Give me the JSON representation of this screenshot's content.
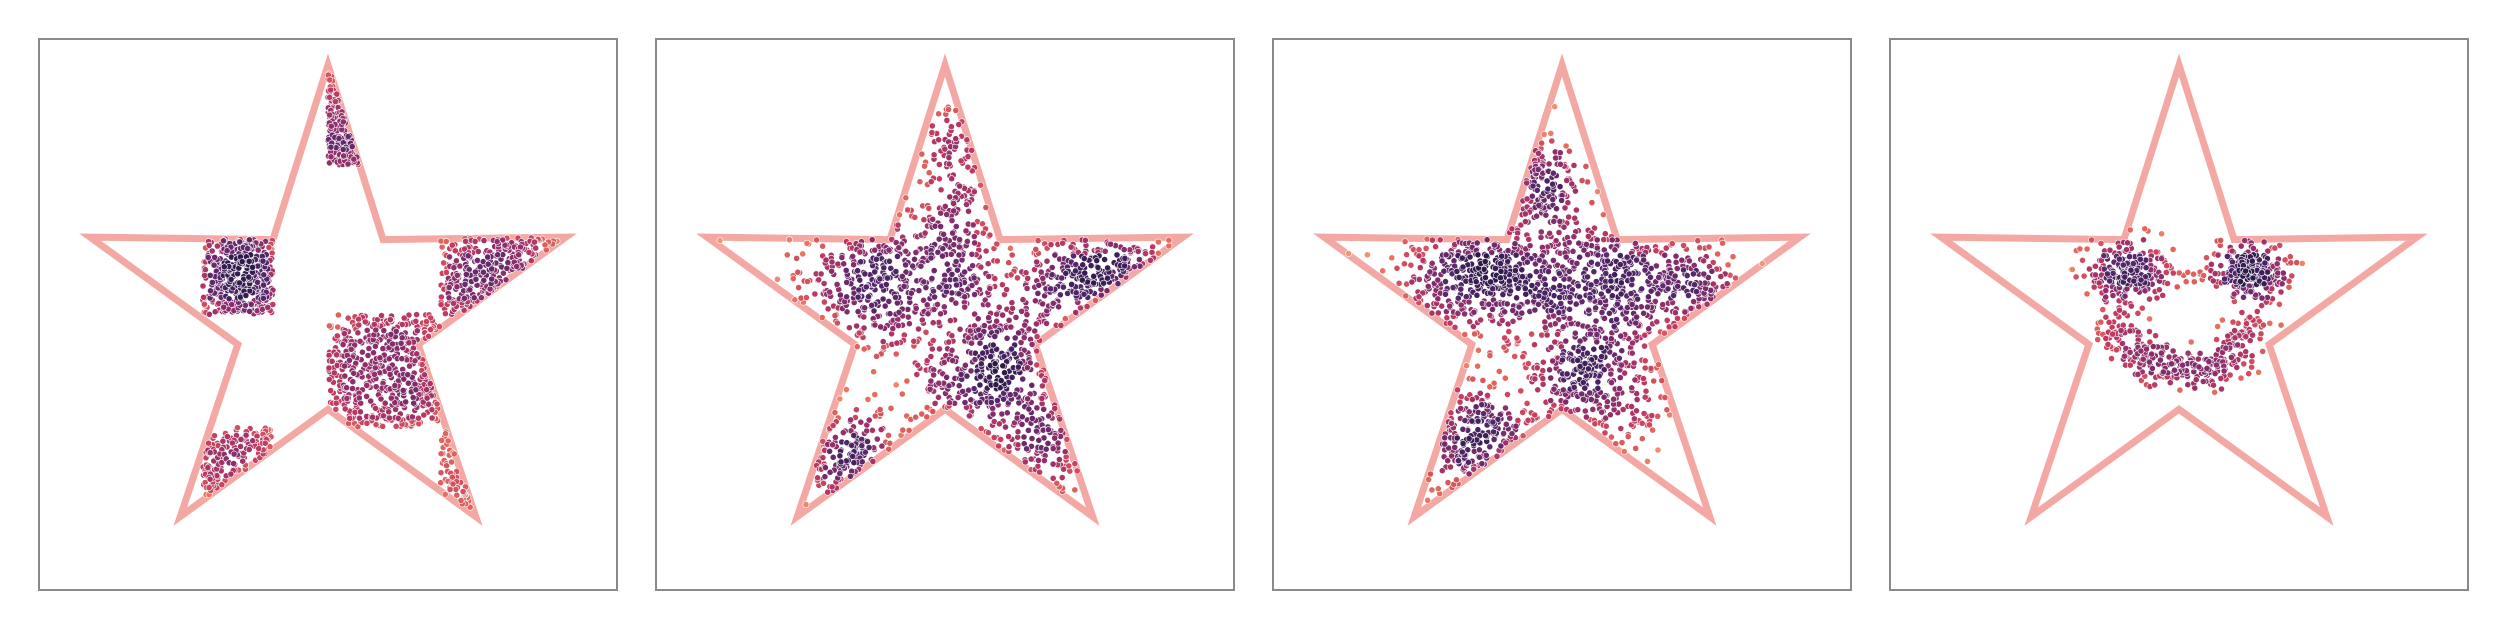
{
  "chart_data": [
    {
      "type": "scatter",
      "title": "",
      "xlabel": "",
      "ylabel": "",
      "grid": false,
      "legend": "none",
      "xlim": [
        -1.15,
        1.15
      ],
      "ylim": [
        -1.1,
        1.1
      ],
      "colormap": [
        "#f3a07b",
        "#e3685c",
        "#c23b60",
        "#8f2f6b",
        "#55266b",
        "#2d1a4a"
      ],
      "boundary": {
        "shape": "star",
        "color": "#f4a8a4",
        "vertices": [
          [
            0.0,
            1.0
          ],
          [
            0.22,
            0.3
          ],
          [
            0.95,
            0.31
          ],
          [
            0.36,
            -0.12
          ],
          [
            0.59,
            -0.81
          ],
          [
            0.0,
            -0.38
          ],
          [
            -0.59,
            -0.81
          ],
          [
            -0.36,
            -0.12
          ],
          [
            -0.95,
            0.31
          ],
          [
            -0.22,
            0.3
          ]
        ]
      },
      "clusters": [
        {
          "kind": "rect",
          "x": [
            -0.5,
            -0.22
          ],
          "y": [
            0.0,
            0.31
          ],
          "n": 420,
          "seed": 11
        },
        {
          "kind": "rect",
          "x": [
            0.0,
            0.22
          ],
          "y": [
            0.6,
            0.98
          ],
          "n": 180,
          "seed": 12
        },
        {
          "kind": "rect",
          "x": [
            0.45,
            0.95
          ],
          "y": [
            0.0,
            0.31
          ],
          "n": 320,
          "seed": 13
        },
        {
          "kind": "rect",
          "x": [
            0.0,
            0.45
          ],
          "y": [
            -0.45,
            0.0
          ],
          "n": 520,
          "seed": 14
        },
        {
          "kind": "rect",
          "x": [
            -0.5,
            -0.22
          ],
          "y": [
            -0.8,
            -0.45
          ],
          "n": 160,
          "seed": 15
        },
        {
          "kind": "rect",
          "x": [
            0.45,
            0.6
          ],
          "y": [
            -0.8,
            -0.45
          ],
          "n": 60,
          "seed": 16
        }
      ]
    },
    {
      "type": "scatter",
      "title": "",
      "xlabel": "",
      "ylabel": "",
      "grid": false,
      "legend": "none",
      "xlim": [
        -1.15,
        1.15
      ],
      "ylim": [
        -1.1,
        1.1
      ],
      "colormap": [
        "#f3a07b",
        "#e3685c",
        "#c23b60",
        "#8f2f6b",
        "#55266b",
        "#2d1a4a"
      ],
      "boundary": {
        "shape": "star",
        "color": "#f4a8a4",
        "vertices": [
          [
            0.0,
            1.0
          ],
          [
            0.22,
            0.3
          ],
          [
            0.95,
            0.31
          ],
          [
            0.36,
            -0.12
          ],
          [
            0.59,
            -0.81
          ],
          [
            0.0,
            -0.38
          ],
          [
            -0.59,
            -0.81
          ],
          [
            -0.36,
            -0.12
          ],
          [
            -0.95,
            0.31
          ],
          [
            -0.22,
            0.3
          ]
        ]
      },
      "clusters": [
        {
          "kind": "gauss",
          "cx": -0.22,
          "cy": 0.14,
          "sx": 0.22,
          "sy": 0.14,
          "n": 460,
          "seed": 21
        },
        {
          "kind": "gauss",
          "cx": 0.22,
          "cy": -0.22,
          "sx": 0.18,
          "sy": 0.18,
          "n": 460,
          "seed": 22
        },
        {
          "kind": "gauss",
          "cx": 0.62,
          "cy": 0.17,
          "sx": 0.2,
          "sy": 0.09,
          "n": 260,
          "seed": 23
        },
        {
          "kind": "gauss",
          "cx": 0.02,
          "cy": 0.55,
          "sx": 0.07,
          "sy": 0.2,
          "n": 150,
          "seed": 24
        },
        {
          "kind": "gauss",
          "cx": -0.4,
          "cy": -0.58,
          "sx": 0.12,
          "sy": 0.12,
          "n": 150,
          "seed": 25
        },
        {
          "kind": "gauss",
          "cx": 0.45,
          "cy": -0.5,
          "sx": 0.08,
          "sy": 0.12,
          "n": 70,
          "seed": 26
        }
      ]
    },
    {
      "type": "scatter",
      "title": "",
      "xlabel": "",
      "ylabel": "",
      "grid": false,
      "legend": "none",
      "xlim": [
        -1.15,
        1.15
      ],
      "ylim": [
        -1.1,
        1.1
      ],
      "colormap": [
        "#f3a07b",
        "#e3685c",
        "#c23b60",
        "#8f2f6b",
        "#55266b",
        "#2d1a4a"
      ],
      "boundary": {
        "shape": "star",
        "color": "#f4a8a4",
        "vertices": [
          [
            0.0,
            1.0
          ],
          [
            0.22,
            0.3
          ],
          [
            0.95,
            0.31
          ],
          [
            0.36,
            -0.12
          ],
          [
            0.59,
            -0.81
          ],
          [
            0.0,
            -0.38
          ],
          [
            -0.59,
            -0.81
          ],
          [
            -0.36,
            -0.12
          ],
          [
            -0.95,
            0.31
          ],
          [
            -0.22,
            0.3
          ]
        ]
      },
      "clusters": [
        {
          "kind": "gauss",
          "cx": -0.33,
          "cy": 0.14,
          "sx": 0.18,
          "sy": 0.13,
          "n": 420,
          "seed": 31
        },
        {
          "kind": "gauss",
          "cx": 0.18,
          "cy": 0.14,
          "sx": 0.22,
          "sy": 0.13,
          "n": 400,
          "seed": 32
        },
        {
          "kind": "gauss",
          "cx": 0.14,
          "cy": -0.26,
          "sx": 0.14,
          "sy": 0.16,
          "n": 360,
          "seed": 33
        },
        {
          "kind": "gauss",
          "cx": -0.38,
          "cy": -0.5,
          "sx": 0.15,
          "sy": 0.13,
          "n": 220,
          "seed": 34
        },
        {
          "kind": "gauss",
          "cx": -0.1,
          "cy": 0.52,
          "sx": 0.1,
          "sy": 0.12,
          "n": 150,
          "seed": 35
        },
        {
          "kind": "gauss",
          "cx": 0.55,
          "cy": 0.05,
          "sx": 0.14,
          "sy": 0.1,
          "n": 120,
          "seed": 36
        }
      ]
    },
    {
      "type": "scatter",
      "title": "",
      "xlabel": "",
      "ylabel": "",
      "grid": false,
      "legend": "none",
      "xlim": [
        -1.15,
        1.15
      ],
      "ylim": [
        -1.1,
        1.1
      ],
      "colormap": [
        "#f3a07b",
        "#e3685c",
        "#c23b60",
        "#8f2f6b",
        "#55266b",
        "#2d1a4a"
      ],
      "boundary": {
        "shape": "star",
        "color": "#f4a8a4",
        "vertices": [
          [
            0.0,
            1.0
          ],
          [
            0.22,
            0.3
          ],
          [
            0.95,
            0.31
          ],
          [
            0.36,
            -0.12
          ],
          [
            0.59,
            -0.81
          ],
          [
            0.0,
            -0.38
          ],
          [
            -0.59,
            -0.81
          ],
          [
            -0.36,
            -0.12
          ],
          [
            -0.95,
            0.31
          ],
          [
            -0.22,
            0.3
          ]
        ]
      },
      "clusters": [
        {
          "kind": "gauss",
          "cx": -0.2,
          "cy": 0.17,
          "sx": 0.09,
          "sy": 0.06,
          "n": 230,
          "seed": 41
        },
        {
          "kind": "gauss",
          "cx": 0.27,
          "cy": 0.17,
          "sx": 0.09,
          "sy": 0.06,
          "n": 230,
          "seed": 42
        },
        {
          "kind": "smile",
          "cx": 0.02,
          "cy": 0.08,
          "r": 0.3,
          "a0": 200,
          "a1": 340,
          "w": 0.045,
          "n": 320,
          "seed": 43
        }
      ]
    }
  ]
}
